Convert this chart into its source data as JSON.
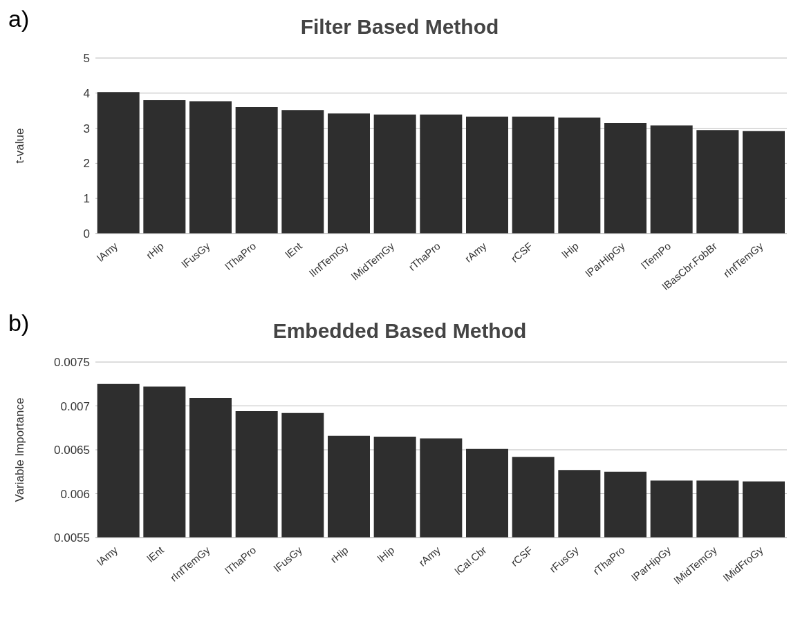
{
  "chart_data": [
    {
      "type": "bar",
      "title": "Filter Based Method",
      "ylabel": "t-value",
      "annotations": [
        "a)"
      ],
      "categories": [
        "lAmy",
        "rHip",
        "lFusGy",
        "lThaPro",
        "lEnt",
        "lInfTemGy",
        "lMidTemGy",
        "rThaPro",
        "rAmy",
        "rCSF",
        "lHip",
        "lParHipGy",
        "lTemPo",
        "lBasCbr.FobBr",
        "rInfTemGy"
      ],
      "values": [
        4.03,
        3.8,
        3.77,
        3.6,
        3.52,
        3.42,
        3.39,
        3.39,
        3.33,
        3.33,
        3.3,
        3.15,
        3.08,
        2.95,
        2.92
      ],
      "color": "#2e2e2e",
      "ylim": [
        0,
        5
      ],
      "yticks": [
        0,
        1,
        2,
        3,
        4,
        5
      ],
      "grid": "y"
    },
    {
      "type": "bar",
      "title": "Embedded Based Method",
      "ylabel": "Variable Importance",
      "annotations": [
        "b)"
      ],
      "categories": [
        "lAmy",
        "lEnt",
        "rInfTemGy",
        "lThaPro",
        "lFusGy",
        "rHip",
        "lHip",
        "rAmy",
        "lCal.Cbr",
        "rCSF",
        "rFusGy",
        "rThaPro",
        "lParHipGy",
        "lMidTemGy",
        "lMidFroGy"
      ],
      "values": [
        0.00725,
        0.00722,
        0.00709,
        0.00694,
        0.00692,
        0.00666,
        0.00665,
        0.00663,
        0.00651,
        0.00642,
        0.00627,
        0.00625,
        0.00615,
        0.00615,
        0.00614
      ],
      "color": "#2e2e2e",
      "ylim": [
        0.0055,
        0.0075
      ],
      "yticks": [
        0.0055,
        0.006,
        0.0065,
        0.007,
        0.0075
      ],
      "grid": "y"
    }
  ]
}
